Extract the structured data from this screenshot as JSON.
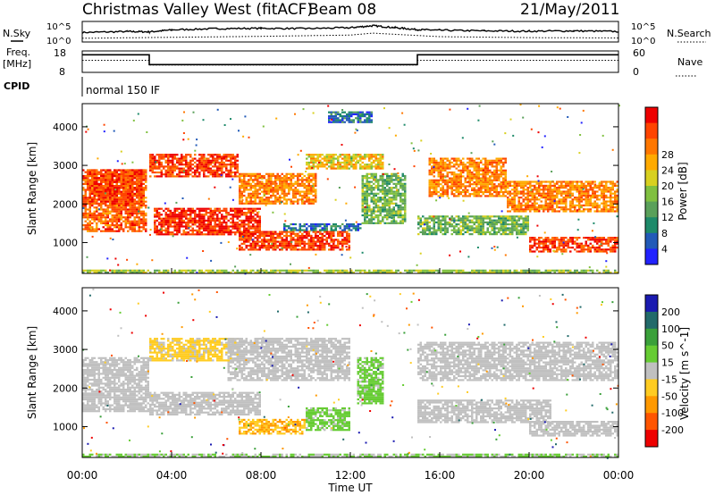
{
  "header": {
    "station": "Christmas Valley West (fitACF)",
    "beam": "Beam 08",
    "date": "21/May/2011"
  },
  "top_panels": {
    "nsky_label": "N.Sky",
    "nsearch_label": "N.Search",
    "nsky_ticks": [
      "10^5",
      "10^0"
    ],
    "nsearch_ticks": [
      "10^5",
      "10^0"
    ],
    "freq_label": "Freq.",
    "freq_unit": "[MHz]",
    "freq_ticks": [
      "18",
      "8"
    ],
    "nave_label": "Nave",
    "nave_ticks": [
      "60",
      "0"
    ],
    "cpid_label": "CPID",
    "cpid_value": "normal 150 IF"
  },
  "chart_data": [
    {
      "type": "line",
      "name": "noise",
      "series": [
        {
          "name": "N.Sky",
          "style": "solid",
          "x": [
            0,
            2,
            3,
            4,
            6,
            8,
            10,
            12,
            13,
            14,
            15,
            16,
            18,
            20,
            22,
            24
          ],
          "y": [
            2.4,
            2.7,
            2.6,
            3.2,
            3.6,
            3.7,
            3.6,
            3.9,
            4.5,
            3.9,
            3.3,
            3.1,
            2.9,
            2.8,
            2.9,
            2.7
          ]
        },
        {
          "name": "N.Search",
          "style": "dotted",
          "x": [
            0,
            4,
            8,
            12,
            13,
            16,
            20,
            24
          ],
          "y": [
            0.6,
            0.9,
            1.2,
            1.6,
            2.2,
            1.1,
            0.8,
            0.7
          ]
        }
      ],
      "xlim": [
        0,
        24
      ]
    },
    {
      "type": "line",
      "name": "frequency",
      "series": [
        {
          "name": "Freq.",
          "style": "solid",
          "x": [
            0,
            3,
            3,
            15,
            15,
            24
          ],
          "y": [
            16.5,
            16.5,
            11.5,
            11.5,
            16.5,
            16.5
          ]
        },
        {
          "name": "Nave",
          "style": "dotted",
          "x": [
            0,
            3,
            3,
            15,
            15,
            24
          ],
          "y": [
            34,
            34,
            20,
            20,
            34,
            34
          ]
        }
      ],
      "ylim": [
        8,
        18
      ]
    },
    {
      "type": "heatmap",
      "name": "power",
      "title": "",
      "ylabel": "Slant Range [km]",
      "yticks": [
        "1000",
        "2000",
        "3000",
        "4000"
      ],
      "ylim": [
        200,
        4600
      ],
      "xlim": [
        0,
        24
      ],
      "colorbar": {
        "label": "Power [dB]",
        "ticks": [
          "4",
          "8",
          "12",
          "16",
          "20",
          "24",
          "28"
        ],
        "colors": [
          "#2222ff",
          "#225ab8",
          "#1e8a6a",
          "#5aa05a",
          "#80c040",
          "#d8d020",
          "#ffaa00",
          "#ff7700",
          "#ff4400",
          "#ee0000"
        ],
        "range": [
          0,
          30
        ]
      },
      "regions": [
        {
          "x": [
            0.0,
            2.9
          ],
          "y": [
            1300,
            2900
          ],
          "value": 24
        },
        {
          "x": [
            0.3,
            2.8
          ],
          "y": [
            2000,
            2900
          ],
          "value": 26
        },
        {
          "x": [
            3.0,
            7.0
          ],
          "y": [
            2700,
            3300
          ],
          "value": 26
        },
        {
          "x": [
            3.2,
            8.0
          ],
          "y": [
            1200,
            1900
          ],
          "value": 27
        },
        {
          "x": [
            7.0,
            10.5
          ],
          "y": [
            2000,
            2800
          ],
          "value": 22
        },
        {
          "x": [
            7.0,
            12.0
          ],
          "y": [
            800,
            1300
          ],
          "value": 26
        },
        {
          "x": [
            9.0,
            12.5
          ],
          "y": [
            1300,
            1500
          ],
          "value": 6
        },
        {
          "x": [
            10.0,
            13.5
          ],
          "y": [
            2900,
            3300
          ],
          "value": 18
        },
        {
          "x": [
            12.5,
            14.5
          ],
          "y": [
            1500,
            2800
          ],
          "value": 12
        },
        {
          "x": [
            15.5,
            19.0
          ],
          "y": [
            2200,
            3200
          ],
          "value": 22
        },
        {
          "x": [
            19.0,
            24.0
          ],
          "y": [
            1800,
            2600
          ],
          "value": 22
        },
        {
          "x": [
            15.0,
            20.0
          ],
          "y": [
            1200,
            1700
          ],
          "value": 12
        },
        {
          "x": [
            20.0,
            24.0
          ],
          "y": [
            750,
            1150
          ],
          "value": 26
        },
        {
          "x": [
            0.0,
            24.0
          ],
          "y": [
            200,
            300
          ],
          "value": 14
        },
        {
          "x": [
            11.0,
            13.0
          ],
          "y": [
            4100,
            4400
          ],
          "value": 6
        }
      ]
    },
    {
      "type": "heatmap",
      "name": "velocity",
      "ylabel": "Slant Range [km]",
      "yticks": [
        "1000",
        "2000",
        "3000",
        "4000"
      ],
      "ylim": [
        200,
        4600
      ],
      "xlim": [
        0,
        24
      ],
      "xticks": [
        "00:00",
        "04:00",
        "08:00",
        "12:00",
        "16:00",
        "20:00",
        "00:00"
      ],
      "xlabel": "Time UT",
      "colorbar": {
        "label": "Velocity [m s^-1]",
        "ticks": [
          "200",
          "100",
          "50",
          "15",
          "-15",
          "-50",
          "-100",
          "-200"
        ],
        "colors": [
          "#1a1ab0",
          "#226a6a",
          "#3aa03a",
          "#66cc33",
          "#c0c0c0",
          "#ffcc22",
          "#ff9900",
          "#ff5500",
          "#ee0000"
        ],
        "range": [
          -250,
          250
        ]
      },
      "regions": [
        {
          "x": [
            0.0,
            3.0
          ],
          "y": [
            1400,
            2800
          ],
          "value": 0
        },
        {
          "x": [
            3.0,
            7.0
          ],
          "y": [
            2700,
            3300
          ],
          "value": -40
        },
        {
          "x": [
            3.0,
            8.0
          ],
          "y": [
            1300,
            1900
          ],
          "value": 0
        },
        {
          "x": [
            6.5,
            12.0
          ],
          "y": [
            2200,
            3300
          ],
          "value": 0
        },
        {
          "x": [
            7.0,
            10.0
          ],
          "y": [
            800,
            1200
          ],
          "value": -80
        },
        {
          "x": [
            10.0,
            12.0
          ],
          "y": [
            900,
            1500
          ],
          "value": 40
        },
        {
          "x": [
            12.3,
            13.5
          ],
          "y": [
            1600,
            2800
          ],
          "value": 40
        },
        {
          "x": [
            15.0,
            24.0
          ],
          "y": [
            2200,
            3200
          ],
          "value": 0
        },
        {
          "x": [
            15.0,
            21.0
          ],
          "y": [
            1100,
            1700
          ],
          "value": 0
        },
        {
          "x": [
            20.0,
            24.0
          ],
          "y": [
            750,
            1150
          ],
          "value": 0
        },
        {
          "x": [
            0.0,
            24.0
          ],
          "y": [
            200,
            300
          ],
          "value": 30
        }
      ]
    }
  ]
}
